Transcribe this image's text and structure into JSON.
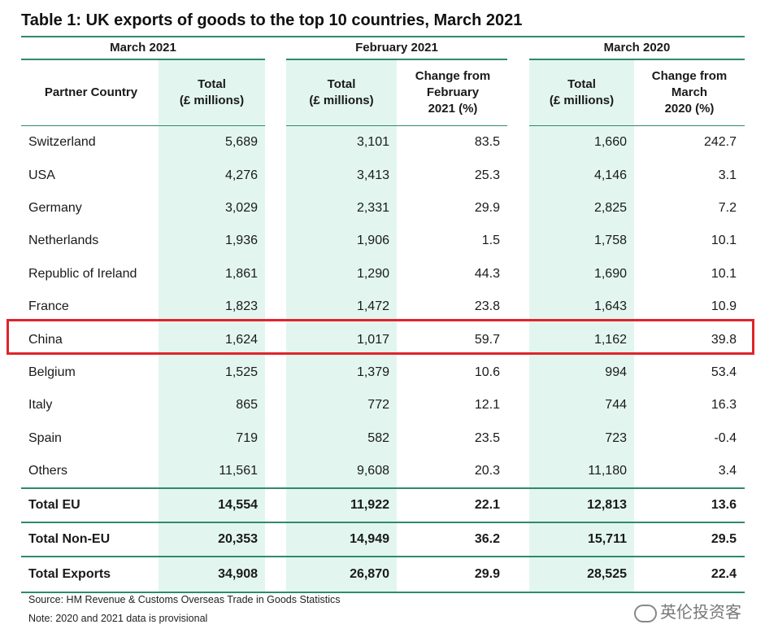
{
  "title": "Table 1: UK exports of goods to the top 10 countries, March 2021",
  "column_groups": [
    "March 2021",
    "February 2021",
    "March 2020"
  ],
  "columns": {
    "partner": [
      "Partner Country"
    ],
    "mar21_total": [
      "Total",
      "(£ millions)"
    ],
    "feb21_total": [
      "Total",
      "(£ millions)"
    ],
    "feb21_change": [
      "Change from",
      "February",
      "2021 (%)"
    ],
    "mar20_total": [
      "Total",
      "(£ millions)"
    ],
    "mar20_change": [
      "Change from",
      "March",
      "2020 (%)"
    ]
  },
  "rows": [
    {
      "country": "Switzerland",
      "mar21_total": "5,689",
      "feb21_total": "3,101",
      "feb21_change": "83.5",
      "mar20_total": "1,660",
      "mar20_change": "242.7"
    },
    {
      "country": "USA",
      "mar21_total": "4,276",
      "feb21_total": "3,413",
      "feb21_change": "25.3",
      "mar20_total": "4,146",
      "mar20_change": "3.1"
    },
    {
      "country": "Germany",
      "mar21_total": "3,029",
      "feb21_total": "2,331",
      "feb21_change": "29.9",
      "mar20_total": "2,825",
      "mar20_change": "7.2"
    },
    {
      "country": "Netherlands",
      "mar21_total": "1,936",
      "feb21_total": "1,906",
      "feb21_change": "1.5",
      "mar20_total": "1,758",
      "mar20_change": "10.1"
    },
    {
      "country": "Republic of Ireland",
      "mar21_total": "1,861",
      "feb21_total": "1,290",
      "feb21_change": "44.3",
      "mar20_total": "1,690",
      "mar20_change": "10.1"
    },
    {
      "country": "France",
      "mar21_total": "1,823",
      "feb21_total": "1,472",
      "feb21_change": "23.8",
      "mar20_total": "1,643",
      "mar20_change": "10.9"
    },
    {
      "country": "China",
      "mar21_total": "1,624",
      "feb21_total": "1,017",
      "feb21_change": "59.7",
      "mar20_total": "1,162",
      "mar20_change": "39.8"
    },
    {
      "country": "Belgium",
      "mar21_total": "1,525",
      "feb21_total": "1,379",
      "feb21_change": "10.6",
      "mar20_total": "994",
      "mar20_change": "53.4"
    },
    {
      "country": "Italy",
      "mar21_total": "865",
      "feb21_total": "772",
      "feb21_change": "12.1",
      "mar20_total": "744",
      "mar20_change": "16.3"
    },
    {
      "country": "Spain",
      "mar21_total": "719",
      "feb21_total": "582",
      "feb21_change": "23.5",
      "mar20_total": "723",
      "mar20_change": "-0.4"
    },
    {
      "country": "Others",
      "mar21_total": "11,561",
      "feb21_total": "9,608",
      "feb21_change": "20.3",
      "mar20_total": "11,180",
      "mar20_change": "3.4"
    }
  ],
  "totals": [
    {
      "country": "Total EU",
      "mar21_total": "14,554",
      "feb21_total": "11,922",
      "feb21_change": "22.1",
      "mar20_total": "12,813",
      "mar20_change": "13.6"
    },
    {
      "country": "Total Non-EU",
      "mar21_total": "20,353",
      "feb21_total": "14,949",
      "feb21_change": "36.2",
      "mar20_total": "15,711",
      "mar20_change": "29.5"
    },
    {
      "country": "Total Exports",
      "mar21_total": "34,908",
      "feb21_total": "26,870",
      "feb21_change": "29.9",
      "mar20_total": "28,525",
      "mar20_change": "22.4"
    }
  ],
  "highlighted_row": "China",
  "footnotes": {
    "source": "Source: HM Revenue & Customs Overseas Trade in Goods Statistics",
    "note": "Note: 2020 and 2021 data is provisional"
  },
  "watermark": "英伦投资客",
  "colors": {
    "accent_green": "#2e8b6a",
    "shade": "#e2f6ef",
    "highlight_red": "#e0242b"
  }
}
